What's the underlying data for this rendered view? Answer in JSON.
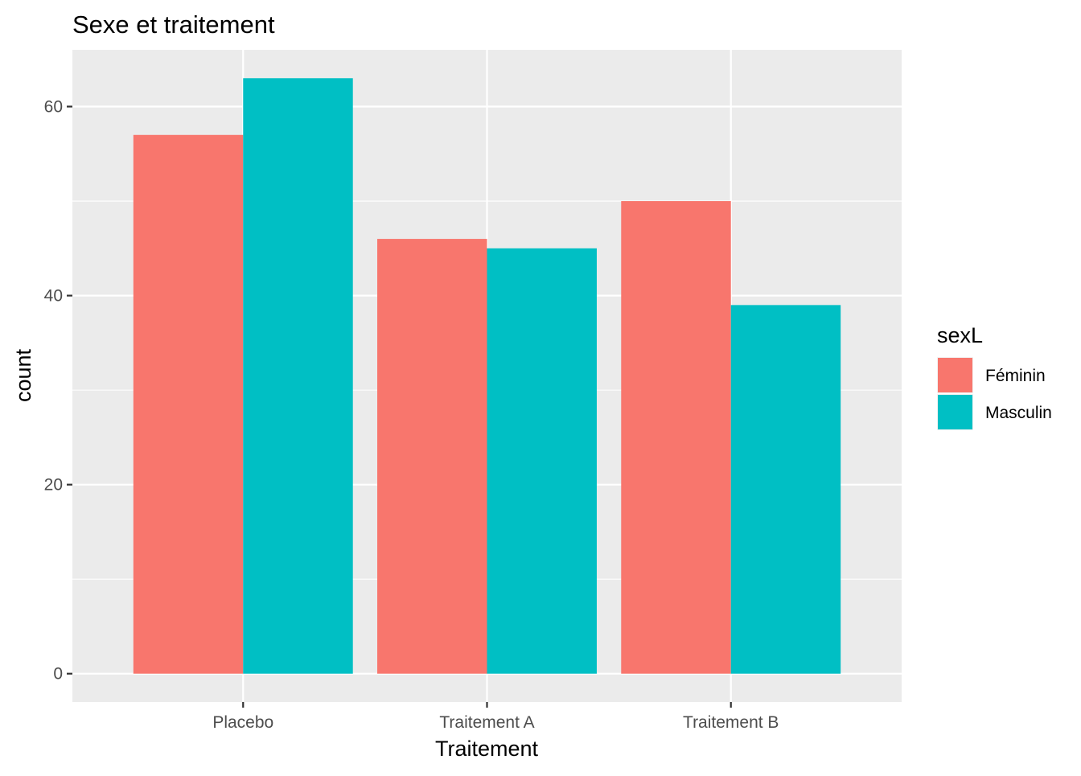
{
  "chart_data": {
    "type": "bar",
    "title": "Sexe et traitement",
    "xlabel": "Traitement",
    "ylabel": "count",
    "categories": [
      "Placebo",
      "Traitement A",
      "Traitement B"
    ],
    "series": [
      {
        "name": "Féminin",
        "values": [
          57,
          46,
          50
        ],
        "color": "#F8766D"
      },
      {
        "name": "Masculin",
        "values": [
          63,
          45,
          39
        ],
        "color": "#00BFC4"
      }
    ],
    "ylim": [
      -3,
      66
    ],
    "yticks": [
      0,
      20,
      40,
      60
    ],
    "grid": true,
    "legend": {
      "title": "sexL",
      "placement": "right"
    },
    "panel_color": "#EBEBEB",
    "grid_color": "#FFFFFF"
  }
}
